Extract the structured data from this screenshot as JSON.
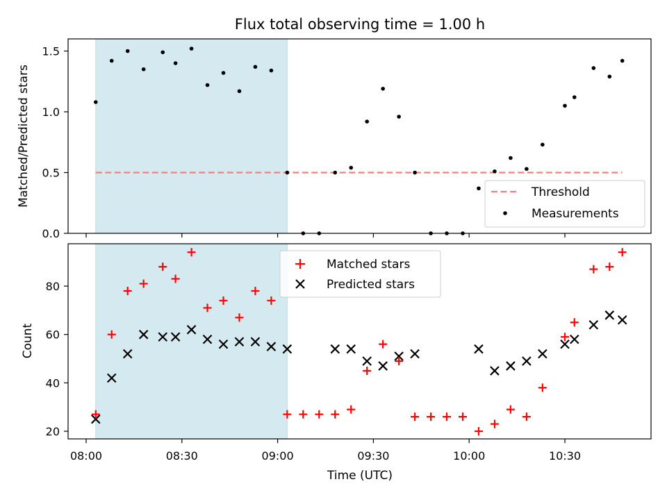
{
  "chart_data": [
    {
      "type": "scatter",
      "title": "Flux total observing time = 1.00 h",
      "xlabel": "",
      "ylabel": "Matched/Predicted stars",
      "ylim": [
        0,
        1.6
      ],
      "yticks": [
        "0.0",
        "0.5",
        "1.0",
        "1.5"
      ],
      "highlight_span": [
        "08:03",
        "09:03"
      ],
      "threshold": {
        "name": "Threshold",
        "value": 0.5,
        "color": "#f08080",
        "x_range": [
          "08:03",
          "10:48"
        ]
      },
      "series": [
        {
          "name": "Measurements",
          "color": "#000000",
          "x": [
            "08:03",
            "08:08",
            "08:13",
            "08:18",
            "08:24",
            "08:28",
            "08:33",
            "08:38",
            "08:43",
            "08:48",
            "08:53",
            "08:58",
            "09:03",
            "09:08",
            "09:13",
            "09:18",
            "09:23",
            "09:28",
            "09:33",
            "09:38",
            "09:43",
            "09:48",
            "09:53",
            "09:58",
            "10:03",
            "10:08",
            "10:13",
            "10:18",
            "10:23",
            "10:30",
            "10:33",
            "10:39",
            "10:44",
            "10:48"
          ],
          "y": [
            1.08,
            1.42,
            1.5,
            1.35,
            1.49,
            1.4,
            1.52,
            1.22,
            1.32,
            1.17,
            1.37,
            1.34,
            0.5,
            0.0,
            0.0,
            0.5,
            0.54,
            0.92,
            1.19,
            0.96,
            0.5,
            0.0,
            0.0,
            0.0,
            0.37,
            0.51,
            0.62,
            0.53,
            0.73,
            1.05,
            1.12,
            1.36,
            1.29,
            1.42
          ]
        }
      ],
      "legend": {
        "position": "lower-right",
        "entries": [
          "Threshold",
          "Measurements"
        ]
      }
    },
    {
      "type": "scatter",
      "xlabel": "Time (UTC)",
      "ylabel": "Count",
      "ylim": [
        16,
        96
      ],
      "yticks": [
        "20",
        "40",
        "60",
        "80"
      ],
      "xticks": [
        "08:00",
        "08:30",
        "09:00",
        "09:30",
        "10:00",
        "10:30"
      ],
      "highlight_span": [
        "08:03",
        "09:03"
      ],
      "series": [
        {
          "name": "Matched stars",
          "marker": "plus",
          "color": "#ff0000",
          "x": [
            "08:03",
            "08:08",
            "08:13",
            "08:18",
            "08:24",
            "08:28",
            "08:33",
            "08:38",
            "08:43",
            "08:48",
            "08:53",
            "08:58",
            "09:03",
            "09:08",
            "09:13",
            "09:18",
            "09:23",
            "09:28",
            "09:33",
            "09:38",
            "09:43",
            "09:48",
            "09:53",
            "09:58",
            "10:03",
            "10:08",
            "10:13",
            "10:18",
            "10:23",
            "10:30",
            "10:33",
            "10:39",
            "10:44",
            "10:48"
          ],
          "y": [
            27,
            60,
            78,
            81,
            88,
            83,
            94,
            71,
            74,
            67,
            78,
            74,
            27,
            27,
            27,
            27,
            29,
            45,
            56,
            49,
            26,
            26,
            26,
            26,
            20,
            23,
            29,
            26,
            38,
            59,
            65,
            87,
            88,
            94
          ]
        },
        {
          "name": "Predicted stars",
          "marker": "x",
          "color": "#000000",
          "x": [
            "08:03",
            "08:08",
            "08:13",
            "08:18",
            "08:24",
            "08:28",
            "08:33",
            "08:38",
            "08:43",
            "08:48",
            "08:53",
            "08:58",
            "09:03",
            "09:18",
            "09:23",
            "09:28",
            "09:33",
            "09:38",
            "09:43",
            "10:03",
            "10:08",
            "10:13",
            "10:18",
            "10:23",
            "10:30",
            "10:33",
            "10:39",
            "10:44",
            "10:48"
          ],
          "y": [
            25,
            42,
            52,
            60,
            59,
            59,
            62,
            58,
            56,
            57,
            57,
            55,
            54,
            54,
            54,
            49,
            47,
            51,
            52,
            54,
            45,
            47,
            49,
            52,
            56,
            58,
            64,
            68,
            66
          ]
        }
      ],
      "legend": {
        "position": "upper-center",
        "entries": [
          "Matched stars",
          "Predicted stars"
        ]
      }
    }
  ]
}
